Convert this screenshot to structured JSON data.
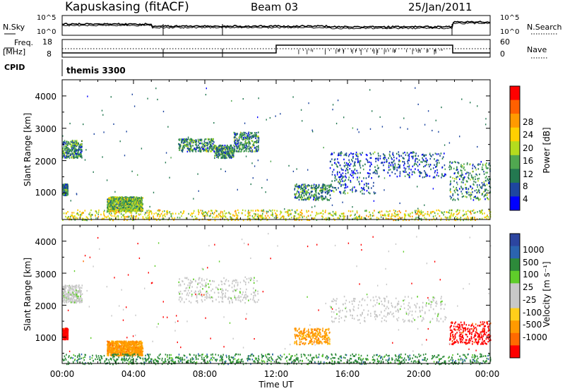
{
  "header": {
    "station": "Kapuskasing (fitACF)",
    "beam": "Beam 03",
    "date": "25/Jan/2011"
  },
  "panels": {
    "noise": {
      "left_label": "N.Sky",
      "right_label": "N.Search",
      "left_ticks": [
        "10^5",
        "10^0"
      ],
      "right_ticks": [
        "10^5",
        "10^0"
      ]
    },
    "freq": {
      "left_label_1": "Freq.",
      "left_label_2": "[MHz]",
      "right_label": "Nave",
      "left_ticks": [
        "18",
        "8"
      ],
      "right_ticks": [
        "60",
        "0"
      ]
    },
    "cpid": {
      "label": "CPID",
      "value": "themis 3300"
    }
  },
  "axes": {
    "ylabel": "Slant Range [km]",
    "xlabel": "Time UT",
    "y_ticks": [
      "4000",
      "3000",
      "2000",
      "1000"
    ],
    "x_ticks": [
      "00:00",
      "04:00",
      "08:00",
      "12:00",
      "16:00",
      "20:00",
      "00:00"
    ]
  },
  "colorbars": {
    "power": {
      "label": "Power [dB]",
      "ticks": [
        "28",
        "24",
        "20",
        "16",
        "12",
        "8",
        "4"
      ],
      "colors": [
        "#ff0000",
        "#ff6000",
        "#ff9a00",
        "#ffd000",
        "#b4dc1e",
        "#50a850",
        "#237850",
        "#1e46a0",
        "#0000ff"
      ]
    },
    "velocity": {
      "label": "Velocity [m s⁻¹]",
      "ticks": [
        "1000",
        "500",
        "100",
        "25",
        "-25",
        "-100",
        "-500",
        "-1000"
      ],
      "colors": [
        "#2c45a0",
        "#2b64b0",
        "#2d8a3a",
        "#5fcd2a",
        "#c8c8c8",
        "#c8c8c8",
        "#ffcf1a",
        "#ff9a00",
        "#ff6a00",
        "#ff0000"
      ]
    }
  },
  "chart_data": {
    "type": "heatmap",
    "time_range_hours": [
      0,
      24
    ],
    "range_km": [
      180,
      4500
    ],
    "power_echo_regions": [
      {
        "t0": 0.0,
        "t1": 1.1,
        "r0": 2100,
        "r1": 2650,
        "dominant_db": 8
      },
      {
        "t0": 0.0,
        "t1": 0.3,
        "r0": 950,
        "r1": 1300,
        "dominant_db": 8
      },
      {
        "t0": 2.5,
        "t1": 4.5,
        "r0": 450,
        "r1": 900,
        "dominant_db": 12
      },
      {
        "t0": 6.5,
        "t1": 8.5,
        "r0": 2300,
        "r1": 2700,
        "dominant_db": 8
      },
      {
        "t0": 8.5,
        "t1": 9.6,
        "r0": 2100,
        "r1": 2500,
        "dominant_db": 8
      },
      {
        "t0": 9.6,
        "t1": 11.0,
        "r0": 2300,
        "r1": 2900,
        "dominant_db": 8
      },
      {
        "t0": 13.0,
        "t1": 15.0,
        "r0": 800,
        "r1": 1300,
        "dominant_db": 8
      },
      {
        "t0": 15.0,
        "t1": 17.5,
        "r0": 1000,
        "r1": 2300,
        "dominant_db": 4
      },
      {
        "t0": 17.5,
        "t1": 21.5,
        "r0": 1500,
        "r1": 2300,
        "dominant_db": 4
      },
      {
        "t0": 21.7,
        "t1": 24.0,
        "r0": 800,
        "r1": 2000,
        "dominant_db": 8
      },
      {
        "t0": 0.0,
        "t1": 24.0,
        "r0": 180,
        "r1": 500,
        "dominant_db": 16
      }
    ],
    "velocity_echo_regions": [
      {
        "t0": 0.0,
        "t1": 1.1,
        "r0": 2100,
        "r1": 2650,
        "dominant_ms": 0
      },
      {
        "t0": 0.0,
        "t1": 0.3,
        "r0": 950,
        "r1": 1300,
        "dominant_ms": -500
      },
      {
        "t0": 2.5,
        "t1": 4.5,
        "r0": 450,
        "r1": 900,
        "dominant_ms": -100
      },
      {
        "t0": 6.5,
        "t1": 11.0,
        "r0": 2100,
        "r1": 2900,
        "dominant_ms": 0
      },
      {
        "t0": 13.0,
        "t1": 15.0,
        "r0": 800,
        "r1": 1300,
        "dominant_ms": -100
      },
      {
        "t0": 15.0,
        "t1": 21.5,
        "r0": 1500,
        "r1": 2300,
        "dominant_ms": 0
      },
      {
        "t0": 21.7,
        "t1": 24.0,
        "r0": 800,
        "r1": 1500,
        "dominant_ms": -500
      },
      {
        "t0": 0.0,
        "t1": 24.0,
        "r0": 180,
        "r1": 500,
        "dominant_ms": 25
      }
    ]
  }
}
